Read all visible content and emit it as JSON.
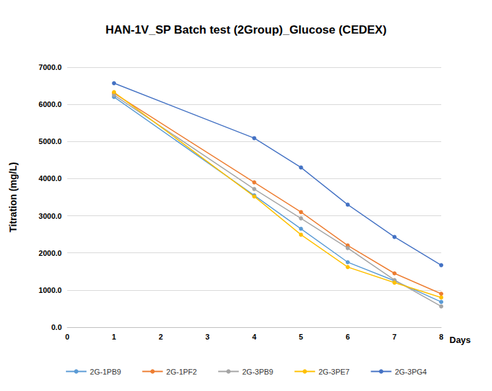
{
  "chart_data": {
    "type": "line",
    "title": "HAN-1V_SP Batch test (2Group)_Glucose (CEDEX)",
    "x_label": "Days",
    "y_label": "Titration (mg/L)",
    "x": [
      1,
      4,
      5,
      6,
      7,
      8
    ],
    "series": [
      {
        "name": "2G-1PB9",
        "color": "#5B9BD5",
        "values": [
          6200,
          3550,
          2650,
          1750,
          1250,
          680
        ]
      },
      {
        "name": "2G-1PF2",
        "color": "#ED7D31",
        "values": [
          6300,
          3900,
          3100,
          2200,
          1450,
          900
        ]
      },
      {
        "name": "2G-3PB9",
        "color": "#A5A5A5",
        "values": [
          6250,
          3720,
          2930,
          2130,
          1270,
          560
        ]
      },
      {
        "name": "2G-3PE7",
        "color": "#FFC000",
        "values": [
          6330,
          3520,
          2490,
          1620,
          1200,
          800
        ]
      },
      {
        "name": "2G-3PG4",
        "color": "#4472C4",
        "values": [
          6570,
          5090,
          4300,
          3300,
          2430,
          1670
        ]
      }
    ],
    "xlim": [
      0,
      8
    ],
    "xticks": [
      0,
      1,
      2,
      3,
      4,
      5,
      6,
      7,
      8
    ],
    "ylim": [
      0,
      7000
    ],
    "yticks": [
      {
        "value": 0,
        "label": "0.0"
      },
      {
        "value": 1000,
        "label": "1000.0"
      },
      {
        "value": 2000,
        "label": "2000.0"
      },
      {
        "value": 3000,
        "label": "3000.0"
      },
      {
        "value": 4000,
        "label": "4000.0"
      },
      {
        "value": 5000,
        "label": "5000.0"
      },
      {
        "value": 6000,
        "label": "6000.0"
      },
      {
        "value": 7000,
        "label": "7000.0"
      }
    ],
    "grid": true,
    "legend": "bottom",
    "marker": "circle"
  }
}
